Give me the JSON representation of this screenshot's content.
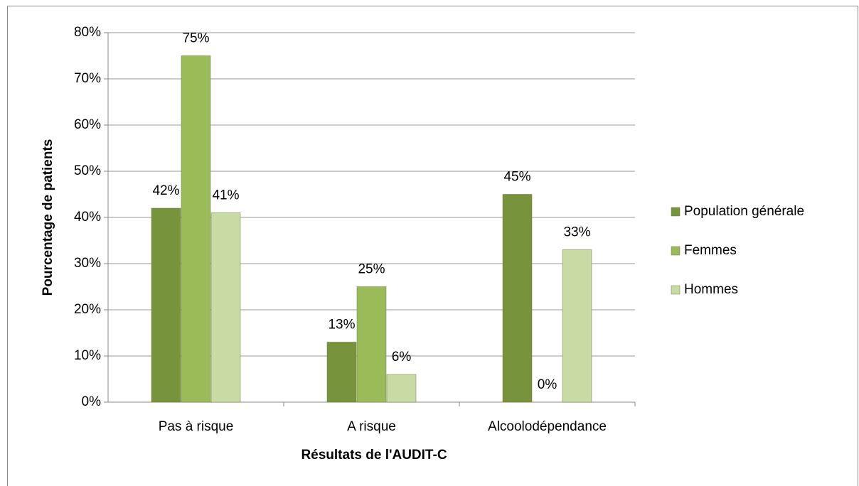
{
  "chart_data": {
    "type": "bar",
    "x_label": "Résultats de l'AUDIT-C",
    "y_label": "Pourcentage de patients",
    "categories": [
      "Pas à risque",
      "A risque",
      "Alcoolodépendance"
    ],
    "series": [
      {
        "name": "Population générale",
        "color": "#77933c",
        "values": [
          42,
          13,
          45
        ],
        "value_labels": [
          "42%",
          "13%",
          "45%"
        ]
      },
      {
        "name": "Femmes",
        "color": "#9bbb59",
        "values": [
          75,
          25,
          0
        ],
        "value_labels": [
          "75%",
          "25%",
          "0%"
        ]
      },
      {
        "name": "Hommes",
        "color": "#c9dba5",
        "values": [
          41,
          6,
          33
        ],
        "value_labels": [
          "41%",
          "6%",
          "33%"
        ]
      }
    ],
    "ylim": [
      0,
      80
    ],
    "yticks": [
      {
        "value": 0,
        "label": "0%"
      },
      {
        "value": 10,
        "label": "10%"
      },
      {
        "value": 20,
        "label": "20%"
      },
      {
        "value": 30,
        "label": "30%"
      },
      {
        "value": 40,
        "label": "40%"
      },
      {
        "value": 50,
        "label": "50%"
      },
      {
        "value": 60,
        "label": "60%"
      },
      {
        "value": 70,
        "label": "70%"
      },
      {
        "value": 80,
        "label": "80%"
      }
    ],
    "grid": true,
    "legend": "right"
  }
}
